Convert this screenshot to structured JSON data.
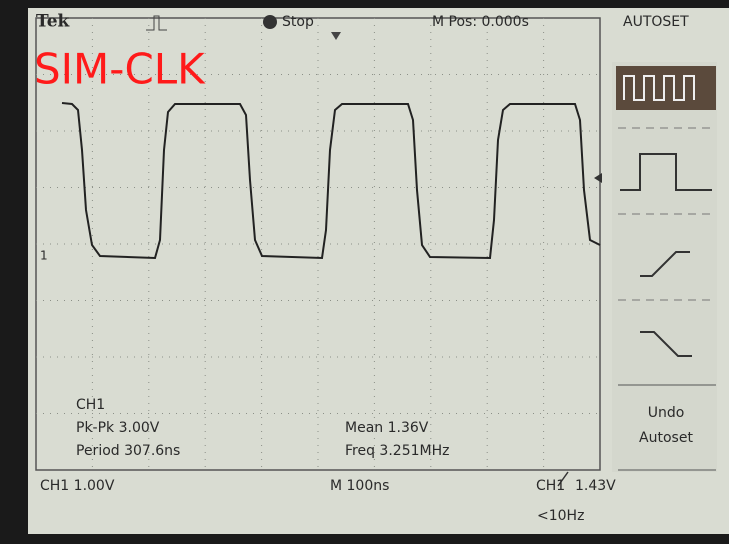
{
  "header": {
    "brand": "Tek",
    "state": "Stop",
    "position": "M Pos: 0.000s",
    "menu": "AUTOSET"
  },
  "label": "SIM-CLK",
  "ground_marker": "1",
  "measurements": {
    "channel": "CH1",
    "pk_pk": "Pk-Pk 3.00V",
    "period": "Period 307.6ns",
    "mean": "Mean 1.36V",
    "freq": "Freq 3.251MHz"
  },
  "footer": {
    "channel_scale": "CH1 1.00V",
    "time_scale": "M 100ns",
    "trigger_channel": "CH1",
    "trigger_level": "1.43V",
    "trigger_freq": "<10Hz"
  },
  "side_menu": {
    "undo": "Undo",
    "autoset": "Autoset"
  }
}
